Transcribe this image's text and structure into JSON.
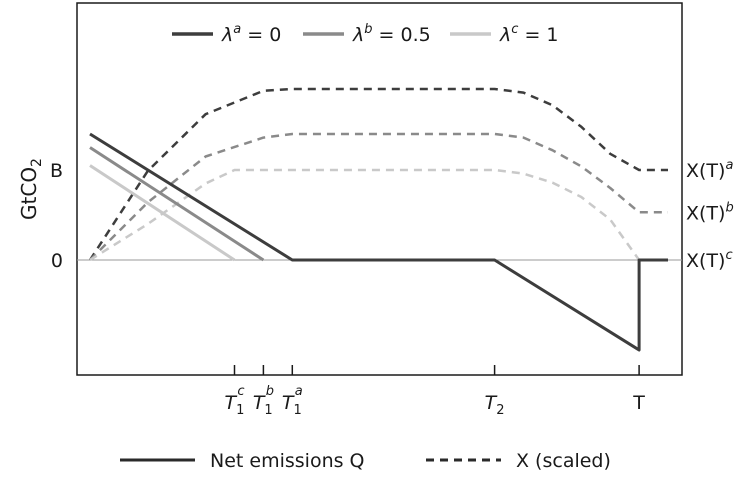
{
  "chart_data": {
    "type": "line",
    "title": "",
    "ylabel": "GtCO",
    "ylabel_sub": "2",
    "xlabel": "",
    "xlim": [
      0,
      100
    ],
    "ylim": [
      -100,
      190
    ],
    "grid": false,
    "yticks": [
      {
        "value": 0,
        "label": "0"
      },
      {
        "value": 100,
        "label": "B"
      }
    ],
    "xticks": [
      {
        "value": 25,
        "base": "T",
        "sub": "1",
        "sup": "c"
      },
      {
        "value": 30,
        "base": "T",
        "sub": "1",
        "sup": "b"
      },
      {
        "value": 35,
        "base": "T",
        "sub": "1",
        "sup": "a"
      },
      {
        "value": 70,
        "base": "T",
        "sub": "2",
        "sup": ""
      },
      {
        "value": 95,
        "base": "T",
        "sub": "",
        "sup": ""
      }
    ],
    "legend_top": [
      {
        "symbol": "λ",
        "sup": "a",
        "text": " = 0",
        "color": "#3d3d3d"
      },
      {
        "symbol": "λ",
        "sup": "b",
        "text": " = 0.5",
        "color": "#8a8a8a"
      },
      {
        "symbol": "λ",
        "sup": "c",
        "text": " = 1",
        "color": "#c9c9c9"
      }
    ],
    "legend_bottom": [
      {
        "text": "Net emissions Q",
        "style": "solid"
      },
      {
        "text": "X (scaled)",
        "style": "dashed"
      }
    ],
    "end_labels": [
      {
        "y": 100,
        "base": "X(T)",
        "sup": "a"
      },
      {
        "y": 53,
        "base": "X(T)",
        "sup": "b"
      },
      {
        "y": 0,
        "base": "X(T)",
        "sup": "c"
      }
    ],
    "series": [
      {
        "key": "a",
        "kind": "Q",
        "color": "#3d3d3d",
        "x": [
          0,
          35,
          70,
          95,
          95,
          100
        ],
        "y": [
          140,
          0,
          0,
          -100,
          0,
          0
        ]
      },
      {
        "key": "b",
        "kind": "Q",
        "color": "#8a8a8a",
        "x": [
          0,
          30
        ],
        "y": [
          125,
          0
        ]
      },
      {
        "key": "c",
        "kind": "Q",
        "color": "#c9c9c9",
        "x": [
          0,
          25
        ],
        "y": [
          105,
          0
        ]
      },
      {
        "key": "a",
        "kind": "X",
        "color": "#3d3d3d",
        "x": [
          0,
          10,
          20,
          30,
          35,
          70,
          75,
          80,
          85,
          90,
          95,
          100
        ],
        "y": [
          0,
          99,
          162,
          188,
          190,
          190,
          186,
          172,
          148,
          118,
          100,
          100
        ]
      },
      {
        "key": "b",
        "kind": "X",
        "color": "#8a8a8a",
        "x": [
          0,
          10,
          20,
          30,
          35,
          70,
          75,
          80,
          85,
          90,
          95,
          100
        ],
        "y": [
          0,
          64,
          115,
          136,
          140,
          140,
          136,
          122,
          104,
          80,
          53,
          53
        ]
      },
      {
        "key": "c",
        "kind": "X",
        "color": "#c9c9c9",
        "x": [
          0,
          10,
          20,
          25,
          70,
          75,
          80,
          85,
          90,
          95,
          100
        ],
        "y": [
          0,
          40,
          85,
          100,
          100,
          96,
          86,
          70,
          45,
          0,
          0
        ]
      }
    ]
  }
}
